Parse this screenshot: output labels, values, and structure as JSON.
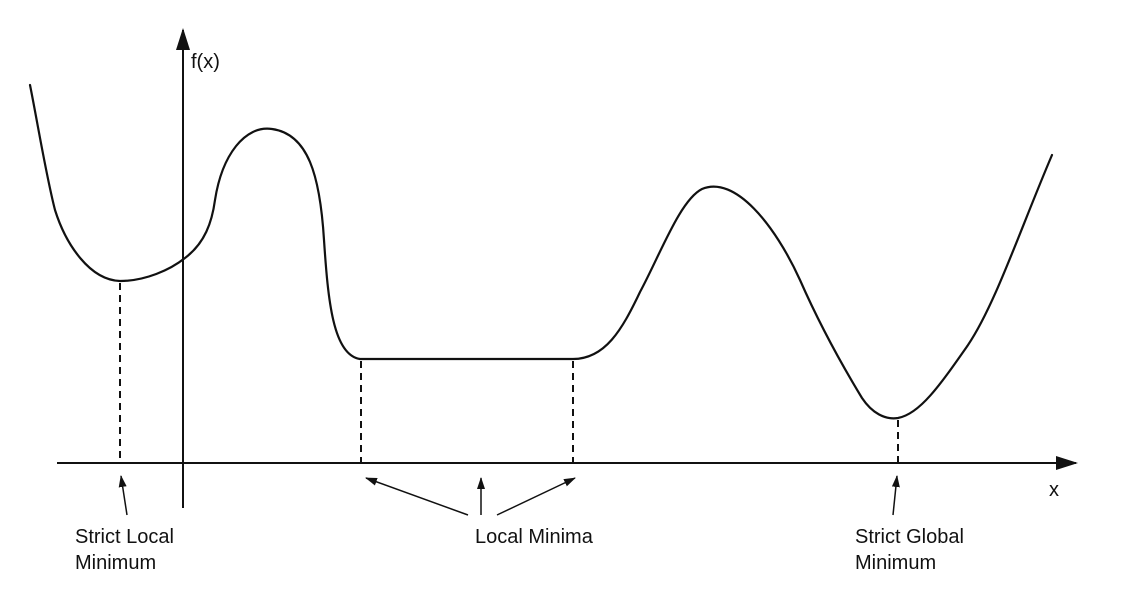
{
  "axes": {
    "y_label": "f(x)",
    "x_label": "x"
  },
  "annotations": {
    "strict_local": [
      "Strict Local",
      "Minimum"
    ],
    "local_minima": "Local Minima",
    "strict_global": [
      "Strict Global",
      "Minimum"
    ]
  },
  "colors": {
    "ink": "#111111",
    "background": "#ffffff"
  }
}
